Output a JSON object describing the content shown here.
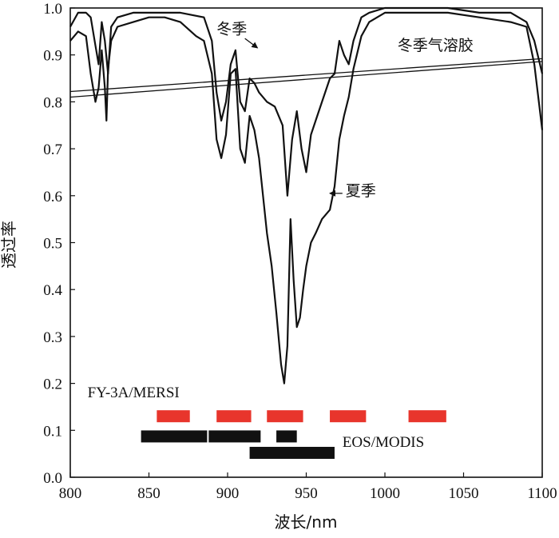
{
  "chart_data": {
    "type": "line",
    "xlabel": "波长/nm",
    "ylabel": "透过率",
    "xlim": [
      800,
      1100
    ],
    "ylim": [
      0.0,
      1.0
    ],
    "x_ticks": [
      "800",
      "850",
      "900",
      "950",
      "1000",
      "1050",
      "1100"
    ],
    "y_ticks": [
      "0.0",
      "0.1",
      "0.2",
      "0.3",
      "0.4",
      "0.5",
      "0.6",
      "0.7",
      "0.8",
      "0.9",
      "1.0"
    ],
    "grid": false,
    "series": [
      {
        "name": "冬季",
        "x": [
          800,
          805,
          810,
          813,
          816,
          818,
          820,
          822,
          824,
          826,
          830,
          840,
          850,
          860,
          870,
          885,
          890,
          893,
          896,
          899,
          902,
          905,
          908,
          911,
          914,
          917,
          920,
          925,
          930,
          935,
          938,
          941,
          944,
          947,
          950,
          953,
          956,
          960,
          965,
          968,
          971,
          974,
          977,
          980,
          985,
          990,
          1000,
          1020,
          1040,
          1060,
          1080,
          1090,
          1095,
          1100
        ],
        "y": [
          0.96,
          0.99,
          0.99,
          0.98,
          0.92,
          0.88,
          0.97,
          0.93,
          0.86,
          0.96,
          0.98,
          0.99,
          0.99,
          0.99,
          0.99,
          0.98,
          0.93,
          0.82,
          0.76,
          0.8,
          0.88,
          0.91,
          0.8,
          0.78,
          0.85,
          0.84,
          0.82,
          0.8,
          0.79,
          0.75,
          0.6,
          0.72,
          0.78,
          0.7,
          0.65,
          0.73,
          0.76,
          0.8,
          0.85,
          0.86,
          0.93,
          0.9,
          0.88,
          0.93,
          0.98,
          0.99,
          1.0,
          1.0,
          1.0,
          0.99,
          0.99,
          0.97,
          0.93,
          0.86
        ]
      },
      {
        "name": "夏季",
        "x": [
          800,
          805,
          810,
          813,
          816,
          818,
          820,
          822,
          823,
          824,
          826,
          830,
          840,
          850,
          860,
          870,
          880,
          885,
          890,
          893,
          896,
          899,
          902,
          905,
          908,
          911,
          914,
          917,
          920,
          925,
          928,
          931,
          934,
          936,
          938,
          940,
          942,
          944,
          946,
          948,
          950,
          953,
          956,
          960,
          965,
          968,
          971,
          974,
          977,
          980,
          985,
          990,
          1000,
          1020,
          1040,
          1060,
          1080,
          1090,
          1095,
          1100
        ],
        "y": [
          0.93,
          0.95,
          0.94,
          0.86,
          0.8,
          0.83,
          0.91,
          0.83,
          0.76,
          0.87,
          0.93,
          0.96,
          0.97,
          0.98,
          0.98,
          0.97,
          0.94,
          0.93,
          0.86,
          0.72,
          0.68,
          0.73,
          0.86,
          0.87,
          0.7,
          0.67,
          0.77,
          0.74,
          0.68,
          0.52,
          0.45,
          0.35,
          0.24,
          0.2,
          0.28,
          0.55,
          0.42,
          0.32,
          0.34,
          0.4,
          0.45,
          0.5,
          0.52,
          0.55,
          0.57,
          0.62,
          0.72,
          0.77,
          0.81,
          0.87,
          0.94,
          0.97,
          0.99,
          0.99,
          0.99,
          0.98,
          0.97,
          0.96,
          0.88,
          0.74
        ]
      },
      {
        "name": "冬季气溶胶",
        "x": [
          800,
          1100
        ],
        "y": [
          0.822,
          0.892
        ]
      },
      {
        "name": "",
        "x": [
          800,
          1100
        ],
        "y": [
          0.81,
          0.886
        ]
      }
    ],
    "annotations": [
      {
        "text": "冬季",
        "x": 918,
        "y": 0.92
      },
      {
        "text": "夏季",
        "x": 975,
        "y": 0.61
      },
      {
        "text": "冬季气溶胶",
        "x": 1015,
        "y": 0.9
      }
    ],
    "sensor_bands": [
      {
        "label": "FY-3A/MERSI",
        "color": "#e8352c",
        "bands": [
          [
            855,
            876
          ],
          [
            893,
            915
          ],
          [
            925,
            948
          ],
          [
            965,
            988
          ],
          [
            1015,
            1039
          ]
        ],
        "y": 0.13
      },
      {
        "label": "EOS/MODIS",
        "color": "#111111",
        "bands": [
          [
            845,
            887
          ],
          [
            888,
            921
          ],
          [
            931,
            944
          ],
          [
            914,
            968
          ]
        ],
        "band_y": [
          0.087,
          0.087,
          0.087,
          0.052
        ]
      }
    ]
  }
}
